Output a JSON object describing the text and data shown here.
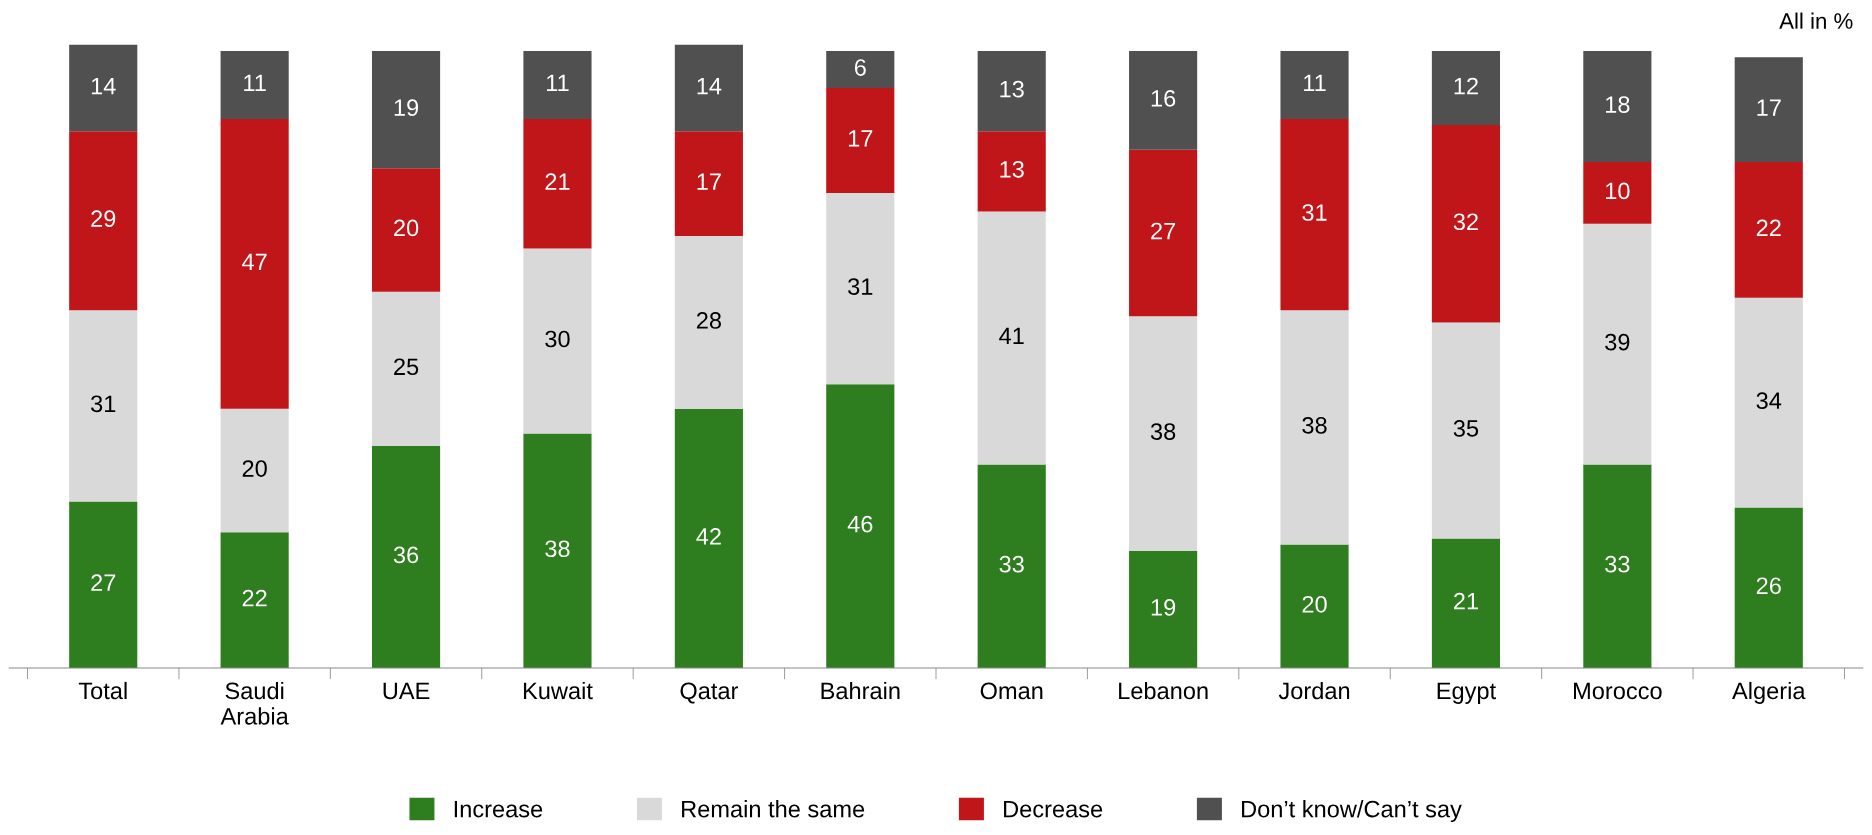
{
  "chart_data": {
    "type": "bar",
    "stacked": true,
    "data_labels": true,
    "legend": "bottom",
    "grid": false,
    "categories": [
      "Total",
      "Saudi\nArabia",
      "UAE",
      "Kuwait",
      "Qatar",
      "Bahrain",
      "Oman",
      "Lebanon",
      "Jordan",
      "Egypt",
      "Morocco",
      "Algeria"
    ],
    "series": [
      {
        "name": "Increase",
        "color": "#2e7d1f",
        "values": [
          27,
          22,
          36,
          38,
          42,
          46,
          33,
          19,
          20,
          21,
          33,
          26
        ]
      },
      {
        "name": "Remain the same",
        "color": "#d9d9d9",
        "values": [
          31,
          20,
          25,
          30,
          28,
          31,
          41,
          38,
          38,
          35,
          39,
          34
        ]
      },
      {
        "name": "Decrease",
        "color": "#c0161a",
        "values": [
          29,
          47,
          20,
          21,
          17,
          17,
          13,
          27,
          31,
          32,
          10,
          22
        ]
      },
      {
        "name": "Don’t know/Can’t say",
        "color": "#505050",
        "values": [
          14,
          11,
          19,
          11,
          14,
          6,
          13,
          16,
          11,
          12,
          18,
          17
        ]
      }
    ],
    "annotations": [
      "All in %"
    ]
  }
}
